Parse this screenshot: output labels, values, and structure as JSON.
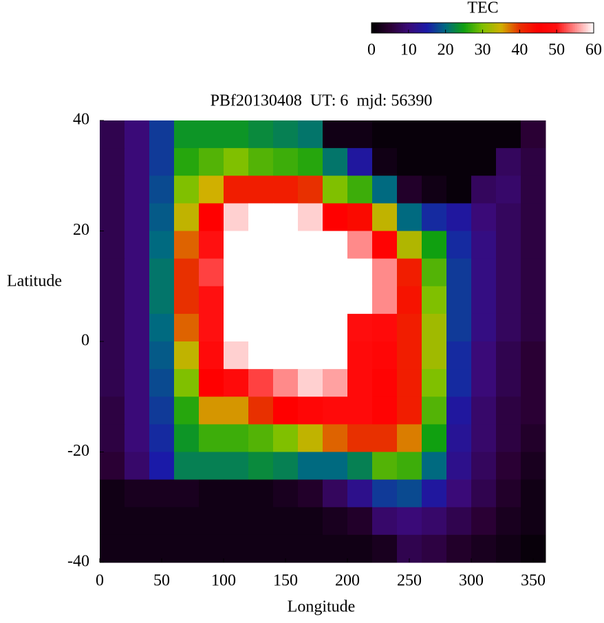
{
  "chart_data": {
    "type": "heatmap",
    "title": "PBf20130408  UT: 6  mjd: 56390",
    "xlabel": "Longitude",
    "ylabel": "Latitude",
    "x": [
      10,
      30,
      50,
      70,
      90,
      110,
      130,
      150,
      170,
      190,
      210,
      230,
      250,
      270,
      290,
      310,
      330,
      350
    ],
    "y": [
      37.5,
      32.5,
      27.5,
      22.5,
      17.5,
      12.5,
      7.5,
      2.5,
      -2.5,
      -7.5,
      -12.5,
      -17.5,
      -22.5,
      -27.5,
      -32.5,
      -37.5
    ],
    "z": [
      [
        7,
        10,
        17,
        24,
        24,
        24,
        23,
        22,
        21,
        2,
        2,
        1,
        1,
        1,
        1,
        1,
        1,
        5
      ],
      [
        7,
        10,
        17,
        26,
        28,
        30,
        28,
        27,
        26,
        21,
        14,
        2,
        1,
        1,
        1,
        1,
        8,
        6
      ],
      [
        7,
        10,
        18,
        30,
        35,
        42,
        42,
        42,
        40,
        30,
        27,
        20,
        4,
        2,
        1,
        8,
        9,
        6
      ],
      [
        7,
        10,
        19,
        34,
        45,
        58,
        60,
        60,
        58,
        45,
        44,
        34,
        20,
        16,
        14,
        10,
        8,
        6
      ],
      [
        7,
        10,
        20,
        38,
        50,
        60,
        60,
        60,
        60,
        60,
        55,
        46,
        33,
        25,
        16,
        11,
        8,
        6
      ],
      [
        7,
        10,
        21,
        40,
        52,
        60,
        60,
        60,
        60,
        60,
        60,
        55,
        42,
        28,
        17,
        11,
        8,
        6
      ],
      [
        7,
        10,
        21,
        40,
        50,
        60,
        60,
        60,
        60,
        60,
        60,
        55,
        43,
        30,
        17,
        11,
        8,
        6
      ],
      [
        7,
        10,
        20,
        38,
        50,
        60,
        60,
        60,
        60,
        60,
        49,
        48,
        42,
        32,
        17,
        11,
        8,
        6
      ],
      [
        7,
        10,
        19,
        34,
        48,
        58,
        60,
        60,
        60,
        60,
        48,
        47,
        42,
        32,
        16,
        10,
        7,
        5
      ],
      [
        7,
        10,
        18,
        30,
        45,
        48,
        52,
        55,
        58,
        56,
        48,
        46,
        42,
        30,
        16,
        10,
        7,
        5
      ],
      [
        6,
        10,
        17,
        26,
        36,
        36,
        40,
        45,
        47,
        48,
        48,
        46,
        42,
        28,
        14,
        9,
        6,
        5
      ],
      [
        6,
        10,
        16,
        24,
        27,
        27,
        28,
        30,
        34,
        38,
        40,
        40,
        37,
        25,
        13,
        9,
        6,
        4
      ],
      [
        5,
        9,
        15,
        22,
        22,
        22,
        23,
        22,
        20,
        20,
        22,
        28,
        27,
        20,
        12,
        8,
        5,
        3
      ],
      [
        2,
        3,
        3,
        3,
        2,
        2,
        2,
        3,
        4,
        8,
        12,
        17,
        18,
        14,
        10,
        7,
        4,
        2
      ],
      [
        2,
        2,
        2,
        2,
        2,
        2,
        2,
        2,
        2,
        3,
        4,
        9,
        10,
        9,
        7,
        5,
        3,
        2
      ],
      [
        2,
        2,
        2,
        2,
        2,
        2,
        2,
        2,
        2,
        2,
        2,
        3,
        7,
        6,
        4,
        3,
        2,
        1
      ]
    ],
    "xlim": [
      0,
      360
    ],
    "xticks": [
      0,
      50,
      100,
      150,
      200,
      250,
      300,
      350
    ],
    "ylim": [
      -40,
      40
    ],
    "yticks": [
      -40,
      -20,
      0,
      20,
      40
    ],
    "colorbar": {
      "label": "TEC",
      "clim": [
        0,
        60
      ],
      "ticks": [
        0,
        10,
        20,
        30,
        40,
        50,
        60
      ],
      "colors": [
        "#000000",
        "#2a0034",
        "#3a0a78",
        "#1a1aa8",
        "#006a80",
        "#10a010",
        "#80c000",
        "#d0b000",
        "#e83000",
        "#ff0000",
        "#ff1010",
        "#ff8a8a",
        "#ffffff"
      ]
    }
  }
}
